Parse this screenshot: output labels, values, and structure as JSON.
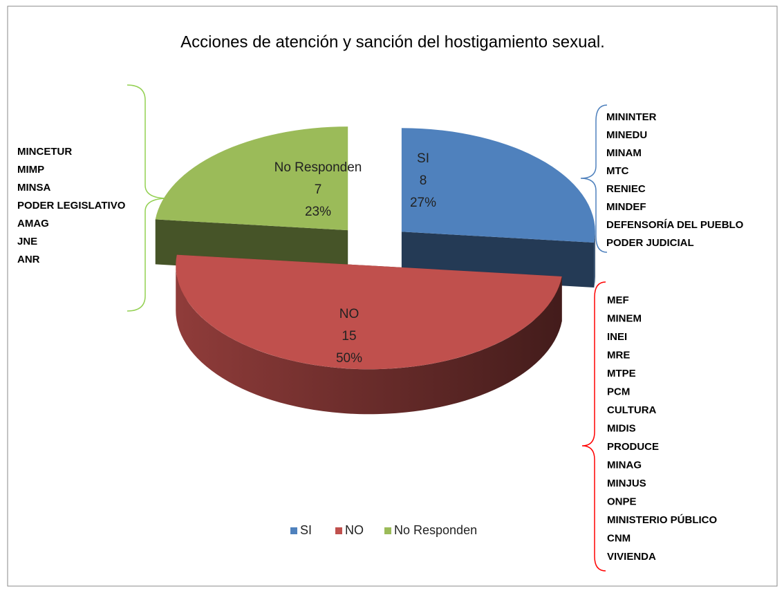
{
  "chart_data": {
    "type": "pie",
    "title": "Acciones de  atención y sanción del hostigamiento sexual.",
    "categories": [
      "SI",
      "NO",
      "No Responden"
    ],
    "values": [
      8,
      15,
      7
    ],
    "percent_labels": [
      "27%",
      "50%",
      "23%"
    ],
    "colors": [
      "#4f81bd",
      "#c0504d",
      "#9bbb59"
    ],
    "legend": "bottom",
    "annotations": [
      [
        "MININTER",
        "MINEDU",
        "MINAM",
        "MTC",
        "RENIEC",
        "MINDEF",
        "DEFENSORÍA DEL PUEBLO",
        "PODER JUDICIAL"
      ],
      [
        "MEF",
        "MINEM",
        "INEI",
        "MRE",
        "MTPE",
        "PCM",
        "CULTURA",
        "MIDIS",
        "PRODUCE",
        "MINAG",
        "MINJUS",
        "ONPE",
        "MINISTERIO PÚBLICO",
        "CNM",
        "VIVIENDA"
      ],
      [
        "MINCETUR",
        "MIMP",
        "MINSA",
        "PODER LEGISLATIVO",
        "AMAG",
        "JNE",
        "ANR"
      ]
    ]
  }
}
